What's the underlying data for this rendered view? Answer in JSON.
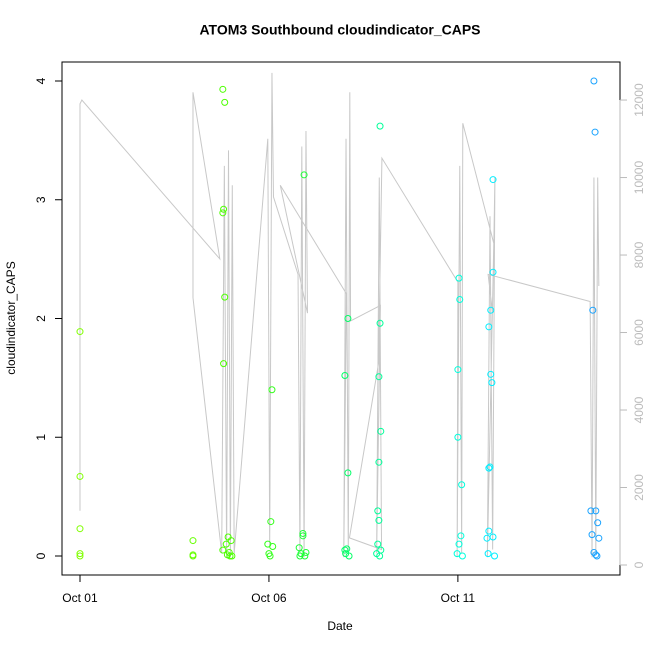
{
  "chart_data": {
    "type": "scatter",
    "title": "ATOM3 Southbound cloudindicator_CAPS",
    "x_label": "Date",
    "y_label": "cloudindicator_CAPS",
    "xlim": [
      0.524,
      15.29
    ],
    "xticks": [
      {
        "value": 1,
        "label": "Oct 01"
      },
      {
        "value": 6,
        "label": "Oct 06"
      },
      {
        "value": 11,
        "label": "Oct 11"
      }
    ],
    "ylim": [
      -0.16,
      4.16
    ],
    "yticks": [
      0,
      1,
      2,
      3,
      4
    ],
    "y2lim": [
      -258,
      12982
    ],
    "y2ticks": [
      0,
      2000,
      4000,
      6000,
      8000,
      10000,
      12000
    ],
    "y2_color": "#bbbbbb",
    "series": [
      {
        "type": "line",
        "axis": "y2",
        "color": "#c8c8c8",
        "x": [
          1.0,
          1.0,
          1.05,
          4.7,
          3.99,
          3.99,
          4.75,
          4.82,
          4.88,
          4.93,
          4.98,
          5.03,
          5.08,
          5.97,
          6.02,
          6.08,
          6.12,
          6.77,
          6.82,
          6.87,
          6.93,
          6.98,
          7.02,
          6.3,
          8.05,
          7.98,
          8.04,
          8.1,
          8.14,
          8.16,
          8.95,
          8.85,
          8.92,
          8.98,
          8.13,
          8.9,
          8.99,
          11.0,
          10.98,
          11.05,
          11.1,
          11.13,
          11.95,
          11.78,
          11.85,
          11.92,
          11.98,
          11.92,
          11.8,
          14.5,
          14.55,
          14.6,
          14.65,
          14.7,
          14.73
        ],
        "values": [
          1400,
          11900,
          12000,
          7900,
          12200,
          6900,
          300,
          10300,
          200,
          10700,
          200,
          9800,
          300,
          11000,
          500,
          12700,
          9500,
          7500,
          300,
          10800,
          200,
          11200,
          6500,
          9800,
          7000,
          200,
          11000,
          300,
          12200,
          6300,
          6700,
          300,
          10000,
          400,
          700,
          5200,
          10500,
          7300,
          200,
          10300,
          300,
          11400,
          8300,
          200,
          9000,
          400,
          10000,
          6500,
          7500,
          6800,
          200,
          10000,
          300,
          10000,
          7200
        ]
      },
      {
        "color": "#80ff00",
        "x": [
          1.0,
          1.0,
          1.0,
          1.0,
          1.0
        ],
        "values": [
          1.89,
          0.67,
          0.23,
          0.02,
          0.0
        ]
      },
      {
        "color": "#66ff00",
        "x": [
          3.99,
          3.99,
          3.99
        ],
        "values": [
          0.13,
          0.01,
          0.0
        ]
      },
      {
        "color": "#4dff00",
        "x": [
          4.78,
          4.83,
          4.8,
          4.78,
          4.83,
          4.8,
          4.92,
          5.0,
          4.87,
          4.78,
          4.95,
          4.9,
          4.97,
          5.02
        ],
        "values": [
          3.93,
          3.82,
          2.92,
          2.89,
          2.18,
          1.62,
          0.16,
          0.13,
          0.1,
          0.05,
          0.03,
          0.01,
          0.0,
          0.0
        ]
      },
      {
        "color": "#33ff1a",
        "x": [
          6.08,
          6.05,
          5.97,
          6.1,
          6.0,
          6.03
        ],
        "values": [
          1.4,
          0.29,
          0.1,
          0.08,
          0.02,
          0.0
        ]
      },
      {
        "color": "#1aff33",
        "x": [
          6.93,
          6.9,
          6.9,
          6.8,
          6.98,
          6.85,
          6.82,
          6.95
        ],
        "values": [
          3.21,
          0.19,
          0.17,
          0.07,
          0.03,
          0.02,
          0.0,
          0.0
        ]
      },
      {
        "color": "#00ff66",
        "x": [
          8.09,
          8.01,
          8.09,
          8.06,
          8.01,
          8.03,
          8.12
        ],
        "values": [
          2.0,
          1.52,
          0.7,
          0.06,
          0.05,
          0.02,
          0.0
        ]
      },
      {
        "color": "#00ff99",
        "x": [
          8.94,
          8.94,
          8.91,
          8.96,
          8.91,
          8.88,
          8.91,
          8.88,
          8.96,
          8.85,
          8.93
        ],
        "values": [
          3.62,
          1.96,
          1.51,
          1.05,
          0.79,
          0.38,
          0.3,
          0.1,
          0.05,
          0.02,
          0.0
        ]
      },
      {
        "color": "#00ffdd",
        "x": [
          11.03,
          11.05,
          11.0,
          11.0,
          11.1,
          11.08,
          11.03,
          10.98,
          11.12
        ],
        "values": [
          2.34,
          2.16,
          1.57,
          1.0,
          0.6,
          0.17,
          0.1,
          0.02,
          0.0
        ]
      },
      {
        "color": "#00eeff",
        "x": [
          11.93,
          11.93,
          11.87,
          11.82,
          11.87,
          11.9,
          11.85,
          11.82,
          11.82,
          11.93,
          11.77,
          11.8,
          11.97
        ],
        "values": [
          3.17,
          2.39,
          2.07,
          1.93,
          1.53,
          1.46,
          0.75,
          0.74,
          0.21,
          0.16,
          0.15,
          0.02,
          0.0
        ]
      },
      {
        "color": "#1aa3ff",
        "x": [
          14.6,
          14.63,
          14.57,
          14.52,
          14.65,
          14.7,
          14.55,
          14.73,
          14.6,
          14.65,
          14.68
        ],
        "values": [
          4.0,
          3.57,
          2.07,
          0.38,
          0.38,
          0.28,
          0.18,
          0.15,
          0.03,
          0.01,
          0.0
        ]
      }
    ]
  }
}
